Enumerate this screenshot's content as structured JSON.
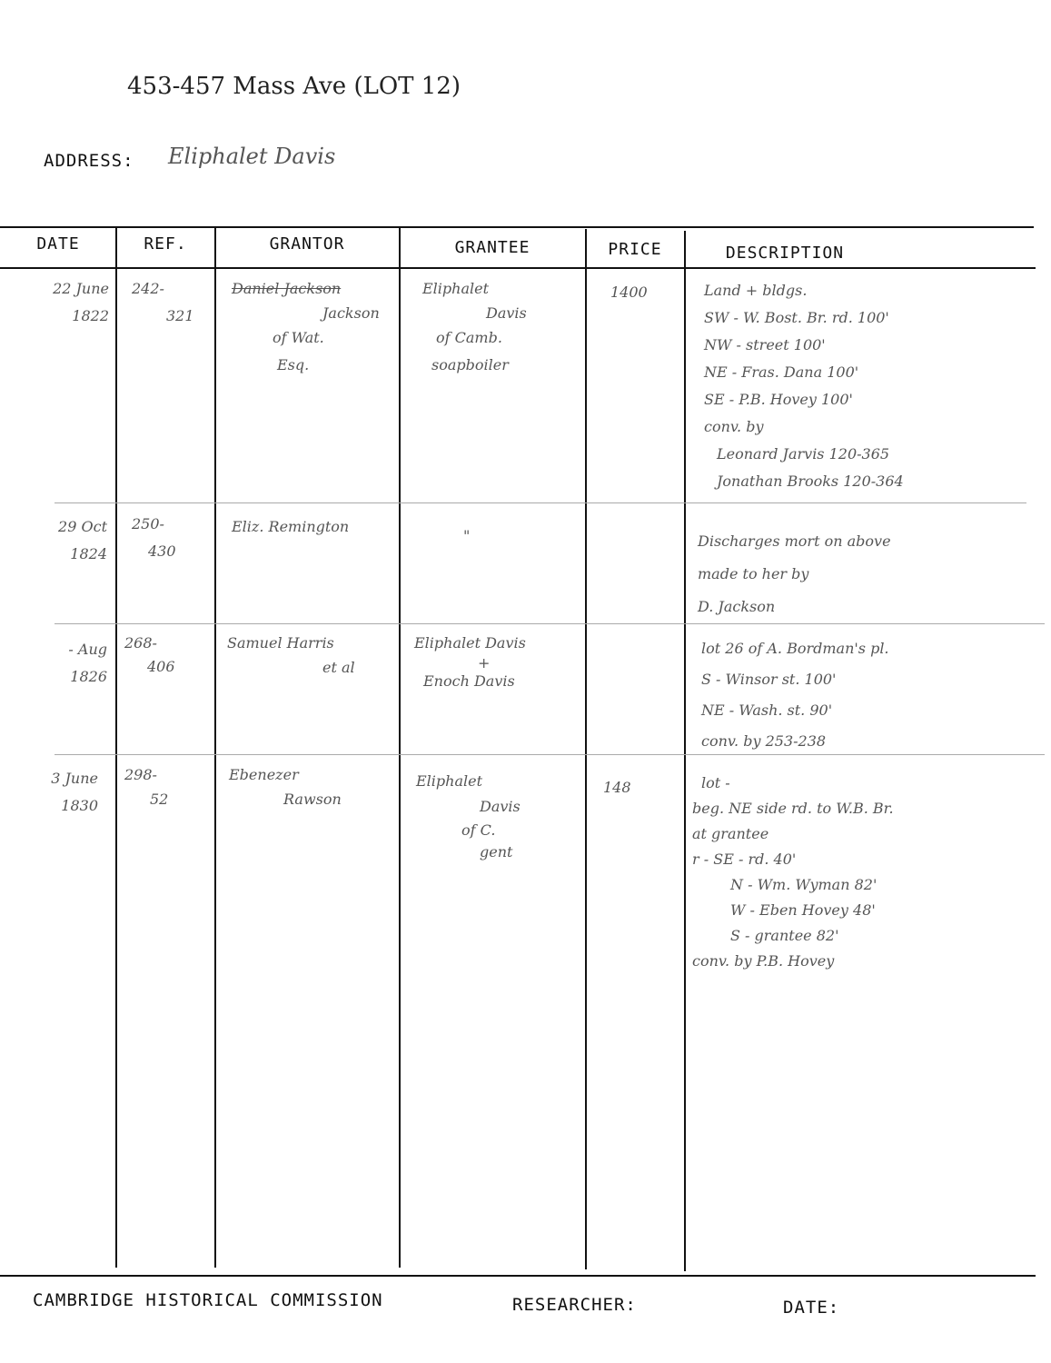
{
  "header": {
    "title_note": "453-457 Mass Ave (LOT 12)",
    "address_label": "ADDRESS:",
    "address_value": "Eliphalet Davis"
  },
  "columns": [
    "DATE",
    "REF.",
    "GRANTOR",
    "GRANTEE",
    "PRICE",
    "DESCRIPTION"
  ],
  "rows": [
    {
      "date": [
        "22 June",
        "1822"
      ],
      "ref": [
        "242-",
        "321"
      ],
      "grantor": [
        "Daniel Jackson",
        "Jackson",
        "of Wat.",
        "Esq."
      ],
      "grantee": [
        "Eliphalet",
        "Davis",
        "of Camb.",
        "soapboiler"
      ],
      "price": "1400",
      "description": [
        "Land + bldgs.",
        "SW - W. Bost. Br. rd. 100'",
        "NW - street 100'",
        "NE - Fras. Dana 100'",
        "SE - P.B. Hovey 100'",
        "conv. by",
        "Leonard Jarvis 120-365",
        "Jonathan Brooks 120-364"
      ]
    },
    {
      "date": [
        "29 Oct",
        "1824"
      ],
      "ref": [
        "250-",
        "430"
      ],
      "grantor": [
        "Eliz. Remington"
      ],
      "grantee": [
        "\""
      ],
      "price": "",
      "description": [
        "Discharges mort on above",
        "made to her by",
        "D. Jackson"
      ]
    },
    {
      "date": [
        "- Aug",
        "1826"
      ],
      "ref": [
        "268-",
        "406"
      ],
      "grantor": [
        "Samuel Harris",
        "et al"
      ],
      "grantee": [
        "Eliphalet Davis",
        "+",
        "Enoch Davis"
      ],
      "price": "",
      "description": [
        "lot 26 of A. Bordman's pl.",
        "S - Winsor st. 100'",
        "NE - Wash. st. 90'",
        "conv. by 253-238"
      ]
    },
    {
      "date": [
        "3 June",
        "1830"
      ],
      "ref": [
        "298-",
        "52"
      ],
      "grantor": [
        "Ebenezer",
        "Rawson"
      ],
      "grantee": [
        "Eliphalet",
        "Davis",
        "of C.",
        "gent"
      ],
      "price": "148",
      "description": [
        "lot -",
        "beg. NE side rd. to W.B. Br.",
        "at grantee",
        "r - SE - rd. 40'",
        "N - Wm. Wyman 82'",
        "W - Eben Hovey 48'",
        "S - grantee 82'",
        "conv. by P.B. Hovey"
      ]
    }
  ],
  "footer": {
    "organization": "CAMBRIDGE HISTORICAL COMMISSION",
    "researcher_label": "RESEARCHER:",
    "date_label": "DATE:"
  }
}
